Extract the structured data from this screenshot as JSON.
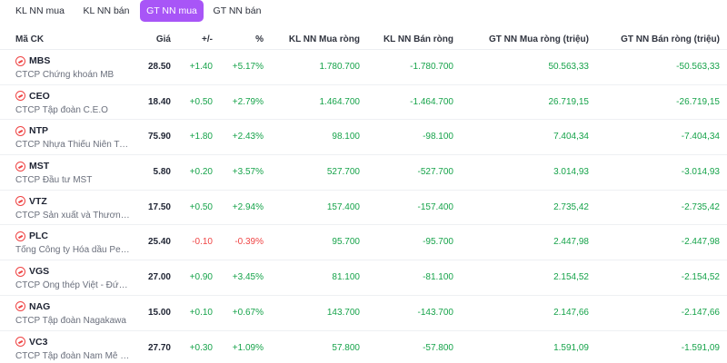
{
  "tabs": [
    {
      "label": "KL NN mua",
      "active": false
    },
    {
      "label": "KL NN bán",
      "active": false
    },
    {
      "label": "GT NN mua",
      "active": true
    },
    {
      "label": "GT NN bán",
      "active": false
    }
  ],
  "colors": {
    "accent": "#a855f7",
    "up": "#16a34a",
    "down": "#ef4444"
  },
  "table": {
    "headers": [
      "Mã CK",
      "Giá",
      "+/-",
      "%",
      "KL NN Mua ròng",
      "KL NN Bán ròng",
      "GT NN Mua ròng (triệu)",
      "GT NN Bán ròng (triệu)"
    ],
    "rows": [
      {
        "symbol": "MBS",
        "name": "CTCP Chứng khoán MB",
        "price": "28.50",
        "change": "+1.40",
        "pct": "+5.17%",
        "buy_vol": "1.780.700",
        "sell_vol": "-1.780.700",
        "buy_val": "50.563,33",
        "sell_val": "-50.563,33",
        "dir": "up"
      },
      {
        "symbol": "CEO",
        "name": "CTCP Tập đoàn C.E.O",
        "price": "18.40",
        "change": "+0.50",
        "pct": "+2.79%",
        "buy_vol": "1.464.700",
        "sell_vol": "-1.464.700",
        "buy_val": "26.719,15",
        "sell_val": "-26.719,15",
        "dir": "up"
      },
      {
        "symbol": "NTP",
        "name": "CTCP Nhựa Thiếu Niên Tiền Phong",
        "price": "75.90",
        "change": "+1.80",
        "pct": "+2.43%",
        "buy_vol": "98.100",
        "sell_vol": "-98.100",
        "buy_val": "7.404,34",
        "sell_val": "-7.404,34",
        "dir": "up"
      },
      {
        "symbol": "MST",
        "name": "CTCP Đầu tư MST",
        "price": "5.80",
        "change": "+0.20",
        "pct": "+3.57%",
        "buy_vol": "527.700",
        "sell_vol": "-527.700",
        "buy_val": "3.014,93",
        "sell_val": "-3.014,93",
        "dir": "up"
      },
      {
        "symbol": "VTZ",
        "name": "CTCP Sản xuất và Thương mại Nhựa Việt Thành",
        "price": "17.50",
        "change": "+0.50",
        "pct": "+2.94%",
        "buy_vol": "157.400",
        "sell_vol": "-157.400",
        "buy_val": "2.735,42",
        "sell_val": "-2.735,42",
        "dir": "up"
      },
      {
        "symbol": "PLC",
        "name": "Tổng Công ty Hóa dầu Petrolimex",
        "price": "25.40",
        "change": "-0.10",
        "pct": "-0.39%",
        "buy_vol": "95.700",
        "sell_vol": "-95.700",
        "buy_val": "2.447,98",
        "sell_val": "-2.447,98",
        "dir": "down"
      },
      {
        "symbol": "VGS",
        "name": "CTCP Ống thép Việt - Đức VG PIPE",
        "price": "27.00",
        "change": "+0.90",
        "pct": "+3.45%",
        "buy_vol": "81.100",
        "sell_vol": "-81.100",
        "buy_val": "2.154,52",
        "sell_val": "-2.154,52",
        "dir": "up"
      },
      {
        "symbol": "NAG",
        "name": "CTCP Tập đoàn Nagakawa",
        "price": "15.00",
        "change": "+0.10",
        "pct": "+0.67%",
        "buy_vol": "143.700",
        "sell_vol": "-143.700",
        "buy_val": "2.147,66",
        "sell_val": "-2.147,66",
        "dir": "up"
      },
      {
        "symbol": "VC3",
        "name": "CTCP Tập đoàn Nam Mê Kông",
        "price": "27.70",
        "change": "+0.30",
        "pct": "+1.09%",
        "buy_vol": "57.800",
        "sell_vol": "-57.800",
        "buy_val": "1.591,09",
        "sell_val": "-1.591,09",
        "dir": "up"
      }
    ]
  }
}
